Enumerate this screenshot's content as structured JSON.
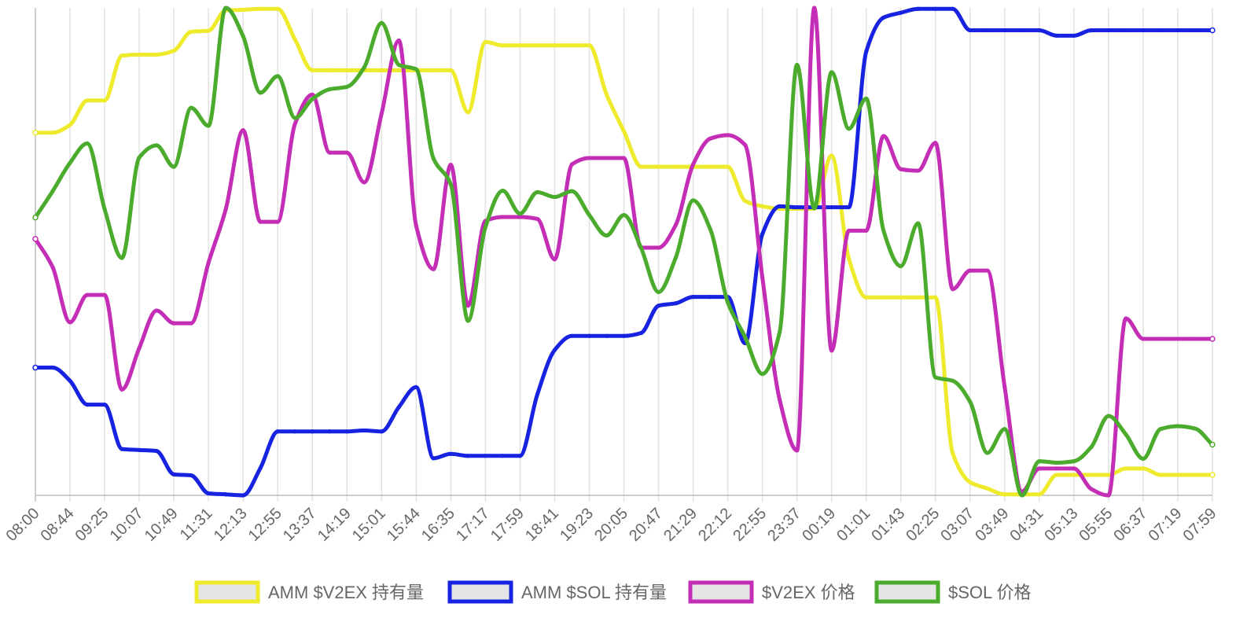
{
  "chart_data": {
    "type": "line",
    "title": "",
    "xlabel": "",
    "ylabel": "",
    "grid": true,
    "legend_position": "bottom",
    "x_tick_labels": [
      "08:00",
      "08:44",
      "09:25",
      "10:07",
      "10:49",
      "11:31",
      "12:13",
      "12:55",
      "13:37",
      "14:19",
      "15:01",
      "15:44",
      "16:35",
      "17:17",
      "17:59",
      "18:41",
      "19:23",
      "20:05",
      "20:47",
      "21:29",
      "22:12",
      "22:55",
      "23:37",
      "00:19",
      "01:01",
      "01:43",
      "02:25",
      "03:07",
      "03:49",
      "04:31",
      "05:13",
      "05:55",
      "06:37",
      "07:19",
      "07:59"
    ],
    "point_count": 69,
    "y_range": [
      0,
      100
    ],
    "series": [
      {
        "name": "AMM $V2EX 持有量",
        "color": "#eeea2c",
        "values": [
          74.4,
          74.4,
          76,
          81,
          81,
          90.2,
          90.4,
          90.4,
          91.2,
          95.1,
          95.3,
          99.5,
          99.6,
          99.8,
          99.8,
          93.5,
          87.2,
          87.2,
          87.2,
          87.2,
          87.2,
          87.2,
          87.2,
          87.2,
          87.2,
          78.6,
          93,
          92.3,
          92.3,
          92.3,
          92.3,
          92.3,
          92.3,
          82.2,
          74.7,
          67.4,
          67.4,
          67.4,
          67.4,
          67.4,
          67.4,
          60.4,
          59.3,
          58.8,
          58.8,
          58.8,
          69.7,
          48.5,
          40.6,
          40.6,
          40.6,
          40.6,
          40.6,
          8.6,
          2.7,
          1.4,
          0.2,
          0.2,
          0.2,
          4.2,
          4.2,
          4.2,
          4.2,
          5.5,
          5.5,
          4.2,
          4.2,
          4.2,
          4.2
        ]
      },
      {
        "name": "AMM $SOL 持有量",
        "color": "#1723e0",
        "values": [
          26.2,
          26.2,
          23.5,
          18.6,
          18.6,
          9.5,
          9.3,
          9.1,
          4.3,
          4.1,
          0.4,
          0.2,
          0,
          5.6,
          13.1,
          13.1,
          13.1,
          13.1,
          13.1,
          13.3,
          13.1,
          18.1,
          22.2,
          7.6,
          8.5,
          8.1,
          8.1,
          8.1,
          8.1,
          20.7,
          29.8,
          32.7,
          32.7,
          32.7,
          32.7,
          33.3,
          38.9,
          39.4,
          40.7,
          40.7,
          40.7,
          31.2,
          53.6,
          59.3,
          59.1,
          59.1,
          59.1,
          59.1,
          91,
          98,
          99,
          99.8,
          99.8,
          99.8,
          95.4,
          95.4,
          95.4,
          95.4,
          95.4,
          94.3,
          94.3,
          95.4,
          95.4,
          95.4,
          95.4,
          95.4,
          95.4,
          95.4,
          95.4
        ]
      },
      {
        "name": "$V2EX 价格",
        "color": "#c42db6",
        "values": [
          52.6,
          46.8,
          35.5,
          41.1,
          41.1,
          21.7,
          30.2,
          37.9,
          35.3,
          35.3,
          47.7,
          58.7,
          74.9,
          56.1,
          56.1,
          76.2,
          82.2,
          70.3,
          70.3,
          64.2,
          78.3,
          93.3,
          55.3,
          46.4,
          67.8,
          38.9,
          56.3,
          57.1,
          57.1,
          56.7,
          48.4,
          67.9,
          69.2,
          69.2,
          69.2,
          50.8,
          50.8,
          55.5,
          67.9,
          73.2,
          73.9,
          71.9,
          44.7,
          19.6,
          9.2,
          100,
          29.7,
          54.3,
          54.3,
          73.7,
          66.9,
          66.6,
          72.3,
          42.3,
          46.1,
          46.1,
          22.2,
          0.8,
          5.5,
          5.5,
          5.5,
          1.3,
          0,
          36.3,
          32.1,
          32.1,
          32.1,
          32.1,
          32.1
        ]
      },
      {
        "name": "$SOL 价格",
        "color": "#4bab2c",
        "values": [
          57,
          62.4,
          68.2,
          72.2,
          58.7,
          48.7,
          69.3,
          71.8,
          67.4,
          79.5,
          75.8,
          100,
          94.2,
          82.6,
          86,
          77.4,
          81.3,
          83.3,
          83.8,
          87.8,
          96.9,
          88.3,
          87.4,
          69.1,
          63.8,
          35.8,
          55,
          62.5,
          57.8,
          62.2,
          61.2,
          62.4,
          57.5,
          53.3,
          57.5,
          50.7,
          41.7,
          48.8,
          60.5,
          54.5,
          39.6,
          32.5,
          24.9,
          33.5,
          88.3,
          58.9,
          86.8,
          75.2,
          81.4,
          54.3,
          47,
          55.8,
          24.2,
          23.5,
          19.2,
          8.7,
          13.6,
          0,
          7,
          6.7,
          7,
          9.9,
          16.3,
          12.5,
          7.5,
          13.6,
          14.2,
          13.7,
          10.4
        ]
      }
    ]
  }
}
